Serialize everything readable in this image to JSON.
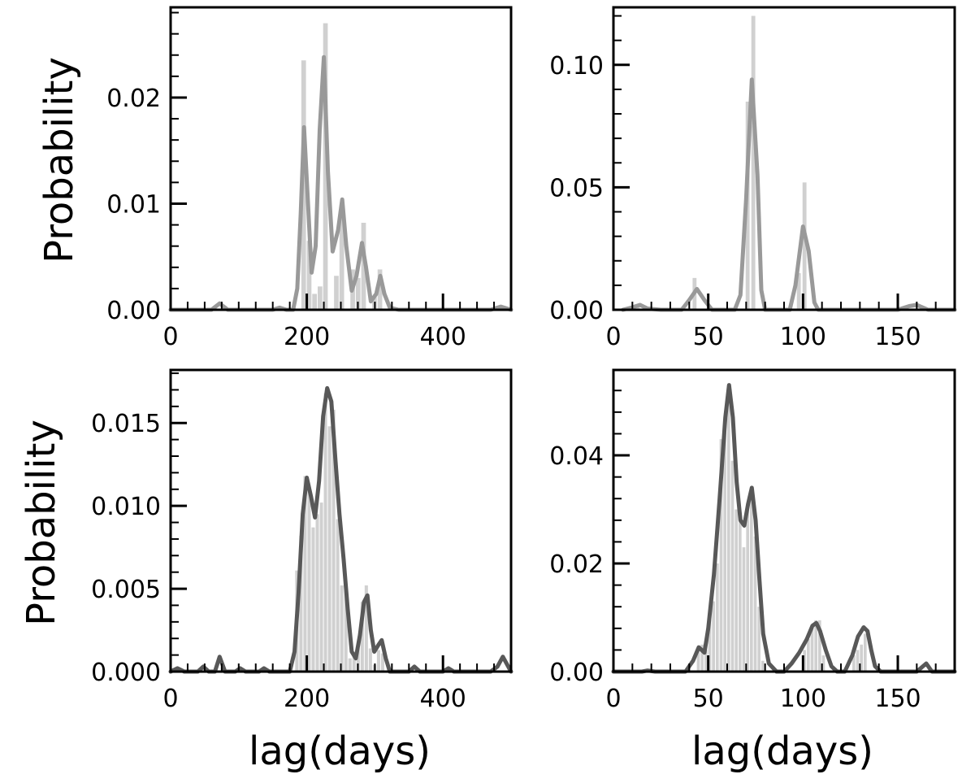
{
  "figure": {
    "xlabel": "lag(days)",
    "ylabel": "Probability"
  },
  "colors": {
    "hist": "#d0d0d0",
    "curve_top": "#999999",
    "curve_bottom": "#585858",
    "axis": "#000000"
  },
  "chart_data": [
    {
      "type": "bar",
      "panel": "top-left",
      "xlim": [
        0,
        500
      ],
      "ylim": [
        0,
        0.0285
      ],
      "xticks": [
        0,
        200,
        400
      ],
      "xtick_labels": [
        "0",
        "200",
        "400"
      ],
      "yticks": [
        0,
        0.01,
        0.02
      ],
      "ytick_labels": [
        "0.00",
        "0.01",
        "0.02"
      ],
      "ylabel": "Probability",
      "xlabel": "",
      "bin_width": 8,
      "histogram": [
        [
          196,
          0.0235
        ],
        [
          204,
          0.0065
        ],
        [
          212,
          0.0015
        ],
        [
          220,
          0.0022
        ],
        [
          228,
          0.027
        ],
        [
          236,
          0.0
        ],
        [
          244,
          0.0032
        ],
        [
          252,
          0.009
        ],
        [
          260,
          0.0
        ],
        [
          268,
          0.0038
        ],
        [
          276,
          0.003
        ],
        [
          284,
          0.0082
        ],
        [
          292,
          0.0
        ],
        [
          300,
          0.0012
        ],
        [
          308,
          0.0038
        ]
      ],
      "curve": [
        [
          0,
          0.0
        ],
        [
          60,
          0.0
        ],
        [
          72,
          0.0006
        ],
        [
          84,
          0.0
        ],
        [
          150,
          0.0
        ],
        [
          160,
          0.0002
        ],
        [
          170,
          0.0
        ],
        [
          180,
          0.0
        ],
        [
          186,
          0.002
        ],
        [
          191,
          0.009
        ],
        [
          196,
          0.0172
        ],
        [
          201,
          0.011
        ],
        [
          207,
          0.0035
        ],
        [
          213,
          0.006
        ],
        [
          219,
          0.017
        ],
        [
          225,
          0.0238
        ],
        [
          231,
          0.013
        ],
        [
          238,
          0.0055
        ],
        [
          246,
          0.0075
        ],
        [
          252,
          0.0104
        ],
        [
          258,
          0.006
        ],
        [
          266,
          0.0018
        ],
        [
          273,
          0.0032
        ],
        [
          281,
          0.0063
        ],
        [
          287,
          0.004
        ],
        [
          294,
          0.0008
        ],
        [
          302,
          0.0015
        ],
        [
          308,
          0.0032
        ],
        [
          314,
          0.0015
        ],
        [
          322,
          0.0002
        ],
        [
          335,
          0.0
        ],
        [
          470,
          0.0
        ],
        [
          485,
          0.0003
        ],
        [
          500,
          0.0
        ]
      ]
    },
    {
      "type": "bar",
      "panel": "top-right",
      "xlim": [
        0,
        180
      ],
      "ylim": [
        0,
        0.1235
      ],
      "xticks": [
        0,
        50,
        100,
        150
      ],
      "xtick_labels": [
        "0",
        "50",
        "100",
        "150"
      ],
      "yticks": [
        0,
        0.05,
        0.1
      ],
      "ytick_labels": [
        "0.00",
        "0.05",
        "0.10"
      ],
      "ylabel": "",
      "xlabel": "",
      "bin_width": 2.5,
      "histogram": [
        [
          13,
          0.002
        ],
        [
          43,
          0.013
        ],
        [
          71,
          0.085
        ],
        [
          74,
          0.12
        ],
        [
          98,
          0.015
        ],
        [
          101,
          0.052
        ]
      ],
      "curve": [
        [
          5,
          0.0
        ],
        [
          10,
          0.001
        ],
        [
          14,
          0.002
        ],
        [
          18,
          0.0005
        ],
        [
          25,
          0.0
        ],
        [
          36,
          0.0
        ],
        [
          40,
          0.004
        ],
        [
          44,
          0.0085
        ],
        [
          48,
          0.004
        ],
        [
          52,
          0.0
        ],
        [
          64,
          0.0
        ],
        [
          67,
          0.006
        ],
        [
          70,
          0.045
        ],
        [
          73,
          0.094
        ],
        [
          76,
          0.055
        ],
        [
          78,
          0.008
        ],
        [
          80,
          0.0
        ],
        [
          93,
          0.0
        ],
        [
          96,
          0.01
        ],
        [
          100,
          0.034
        ],
        [
          103,
          0.024
        ],
        [
          106,
          0.003
        ],
        [
          108,
          0.0
        ],
        [
          150,
          0.0
        ],
        [
          156,
          0.0015
        ],
        [
          160,
          0.002
        ],
        [
          166,
          0.0
        ],
        [
          180,
          0.0
        ]
      ]
    },
    {
      "type": "bar",
      "panel": "bottom-left",
      "xlim": [
        0,
        500
      ],
      "ylim": [
        0,
        0.0182
      ],
      "xticks": [
        0,
        200,
        400
      ],
      "xtick_labels": [
        "0",
        "200",
        "400"
      ],
      "yticks": [
        0,
        0.005,
        0.01,
        0.015
      ],
      "ytick_labels": [
        "0.000",
        "0.005",
        "0.010",
        "0.015"
      ],
      "ylabel": "Probability",
      "xlabel": "lag(days)",
      "bin_width": 6,
      "histogram": [
        [
          186,
          0.0061
        ],
        [
          192,
          0.0082
        ],
        [
          198,
          0.0118
        ],
        [
          204,
          0.011
        ],
        [
          210,
          0.0087
        ],
        [
          216,
          0.0095
        ],
        [
          222,
          0.0102
        ],
        [
          228,
          0.0168
        ],
        [
          234,
          0.0148
        ],
        [
          240,
          0.0158
        ],
        [
          246,
          0.0092
        ],
        [
          252,
          0.0052
        ],
        [
          258,
          0.0052
        ],
        [
          264,
          0.0008
        ],
        [
          270,
          0.0012
        ],
        [
          276,
          0.0014
        ],
        [
          282,
          0.0042
        ],
        [
          288,
          0.0052
        ],
        [
          294,
          0.0014
        ],
        [
          300,
          0.0004
        ],
        [
          306,
          0.0013
        ],
        [
          312,
          0.0011
        ]
      ],
      "curve": [
        [
          0,
          0.0
        ],
        [
          10,
          0.0002
        ],
        [
          20,
          0.0
        ],
        [
          40,
          0.0
        ],
        [
          48,
          0.0003
        ],
        [
          56,
          0.0
        ],
        [
          65,
          0.0
        ],
        [
          72,
          0.0009
        ],
        [
          80,
          0.0
        ],
        [
          95,
          0.0
        ],
        [
          102,
          0.0002
        ],
        [
          110,
          0.0
        ],
        [
          130,
          0.0
        ],
        [
          137,
          0.0002
        ],
        [
          145,
          0.0
        ],
        [
          175,
          0.0
        ],
        [
          182,
          0.0012
        ],
        [
          188,
          0.0048
        ],
        [
          194,
          0.0095
        ],
        [
          200,
          0.0117
        ],
        [
          206,
          0.0106
        ],
        [
          212,
          0.0093
        ],
        [
          218,
          0.0115
        ],
        [
          224,
          0.0154
        ],
        [
          230,
          0.0171
        ],
        [
          236,
          0.0163
        ],
        [
          242,
          0.0128
        ],
        [
          248,
          0.0095
        ],
        [
          254,
          0.0068
        ],
        [
          260,
          0.0038
        ],
        [
          266,
          0.0012
        ],
        [
          272,
          0.0008
        ],
        [
          278,
          0.0022
        ],
        [
          284,
          0.0042
        ],
        [
          289,
          0.0046
        ],
        [
          294,
          0.0025
        ],
        [
          299,
          0.0012
        ],
        [
          305,
          0.0016
        ],
        [
          310,
          0.0019
        ],
        [
          316,
          0.0008
        ],
        [
          322,
          0.0
        ],
        [
          350,
          0.0
        ],
        [
          358,
          0.0003
        ],
        [
          366,
          0.0
        ],
        [
          390,
          0.0
        ],
        [
          400,
          0.0
        ],
        [
          408,
          0.0002
        ],
        [
          416,
          0.0
        ],
        [
          470,
          0.0
        ],
        [
          480,
          0.0003
        ],
        [
          488,
          0.0009
        ],
        [
          496,
          0.0003
        ],
        [
          500,
          0.0
        ]
      ]
    },
    {
      "type": "bar",
      "panel": "bottom-right",
      "xlim": [
        0,
        180
      ],
      "ylim": [
        0,
        0.0558
      ],
      "xticks": [
        0,
        50,
        100,
        150
      ],
      "xtick_labels": [
        "0",
        "50",
        "100",
        "150"
      ],
      "yticks": [
        0,
        0.02,
        0.04
      ],
      "ytick_labels": [
        "0.00",
        "0.02",
        "0.04"
      ],
      "ylabel": "",
      "xlabel": "lag(days)",
      "bin_width": 2,
      "histogram": [
        [
          45,
          0.004
        ],
        [
          47,
          0.005
        ],
        [
          49,
          0.004
        ],
        [
          51,
          0.01
        ],
        [
          53,
          0.013
        ],
        [
          55,
          0.02
        ],
        [
          57,
          0.043
        ],
        [
          59,
          0.046
        ],
        [
          61,
          0.05
        ],
        [
          63,
          0.039
        ],
        [
          65,
          0.03
        ],
        [
          67,
          0.028
        ],
        [
          69,
          0.023
        ],
        [
          71,
          0.03
        ],
        [
          73,
          0.034
        ],
        [
          75,
          0.025
        ],
        [
          77,
          0.012
        ],
        [
          79,
          0.002
        ],
        [
          101,
          0.004
        ],
        [
          103,
          0.006
        ],
        [
          105,
          0.008
        ],
        [
          107,
          0.0095
        ],
        [
          109,
          0.0095
        ],
        [
          111,
          0.003
        ],
        [
          127,
          0.003
        ],
        [
          129,
          0.004
        ],
        [
          131,
          0.005
        ],
        [
          133,
          0.007
        ]
      ],
      "curve": [
        [
          0,
          0.0
        ],
        [
          15,
          0.0
        ],
        [
          18,
          0.0002
        ],
        [
          22,
          0.0
        ],
        [
          38,
          0.0
        ],
        [
          42,
          0.002
        ],
        [
          45,
          0.0045
        ],
        [
          48,
          0.0035
        ],
        [
          50,
          0.008
        ],
        [
          53,
          0.018
        ],
        [
          56,
          0.032
        ],
        [
          59,
          0.047
        ],
        [
          61,
          0.053
        ],
        [
          63,
          0.047
        ],
        [
          65,
          0.035
        ],
        [
          67,
          0.028
        ],
        [
          69,
          0.027
        ],
        [
          71,
          0.031
        ],
        [
          73,
          0.034
        ],
        [
          75,
          0.028
        ],
        [
          77,
          0.017
        ],
        [
          79,
          0.007
        ],
        [
          82,
          0.0015
        ],
        [
          86,
          0.0
        ],
        [
          90,
          0.0
        ],
        [
          94,
          0.0015
        ],
        [
          98,
          0.0035
        ],
        [
          102,
          0.006
        ],
        [
          105,
          0.0085
        ],
        [
          107,
          0.009
        ],
        [
          109,
          0.0075
        ],
        [
          112,
          0.004
        ],
        [
          115,
          0.001
        ],
        [
          118,
          0.0
        ],
        [
          122,
          0.0
        ],
        [
          126,
          0.003
        ],
        [
          129,
          0.0065
        ],
        [
          132,
          0.0082
        ],
        [
          134,
          0.0075
        ],
        [
          136,
          0.004
        ],
        [
          138,
          0.001
        ],
        [
          141,
          0.0
        ],
        [
          160,
          0.0
        ],
        [
          165,
          0.0015
        ],
        [
          168,
          0.0
        ],
        [
          180,
          0.0
        ]
      ]
    }
  ]
}
